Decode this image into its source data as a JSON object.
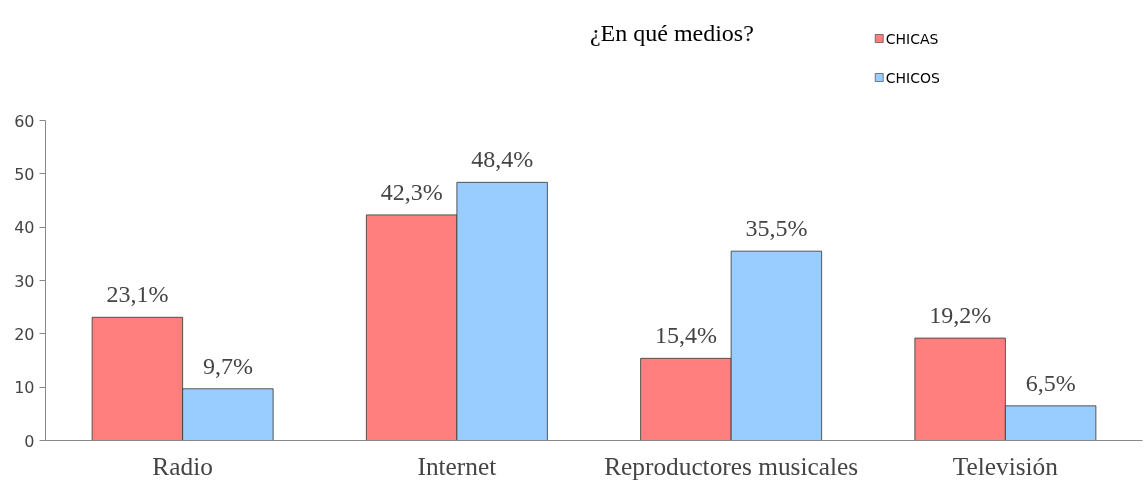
{
  "chart_data": {
    "type": "bar",
    "title": "¿En qué medios?",
    "categories": [
      "Radio",
      "Internet",
      "Reproductores musicales",
      "Televisión"
    ],
    "series": [
      {
        "name": "CHICAS",
        "color": "#ff7f7f",
        "values": [
          23.1,
          42.3,
          15.4,
          19.2
        ],
        "value_labels": [
          "23,1%",
          "42,3%",
          "15,4%",
          "19,2%"
        ]
      },
      {
        "name": "CHICOS",
        "color": "#99ccff",
        "values": [
          9.7,
          48.4,
          35.5,
          6.5
        ],
        "value_labels": [
          "9,7%",
          "48,4%",
          "35,5%",
          "6,5%"
        ]
      }
    ],
    "ylim": [
      0,
      60
    ],
    "yticks": [
      0,
      10,
      20,
      30,
      40,
      50,
      60
    ],
    "grid": false,
    "legend": "top right"
  }
}
